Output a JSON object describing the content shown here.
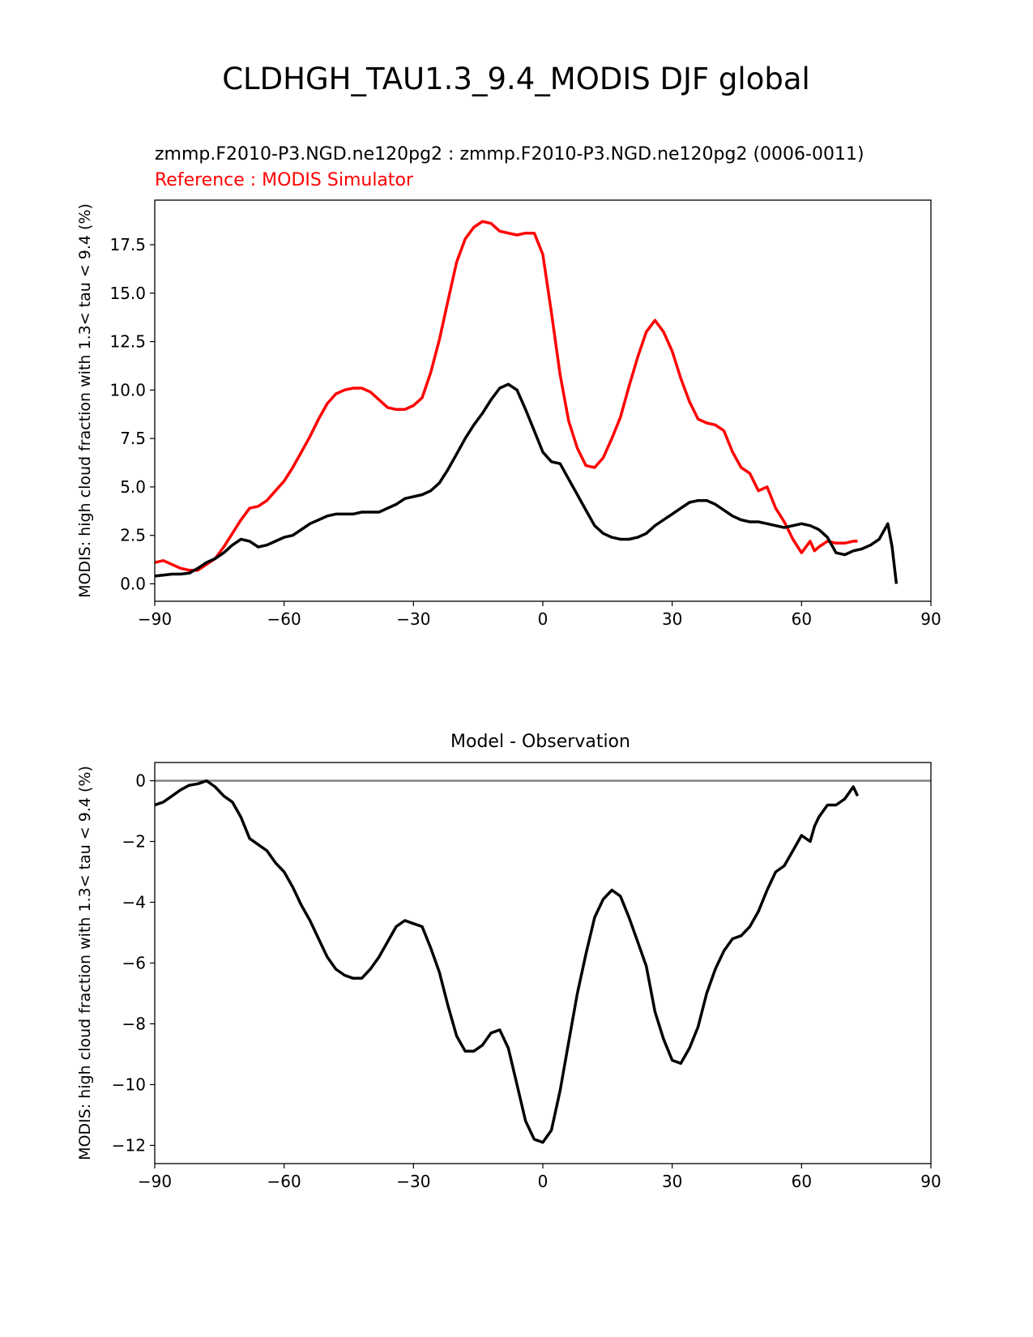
{
  "figure": {
    "suptitle": "CLDHGH_TAU1.3_9.4_MODIS DJF global"
  },
  "chart_data": [
    {
      "type": "line",
      "title_left": "zmmp.F2010-P3.NGD.ne120pg2 : zmmp.F2010-P3.NGD.ne120pg2 (0006-0011)",
      "title_left_2": "Reference : MODIS Simulator",
      "ylabel": "MODIS: high cloud fraction with 1.3< tau < 9.4 (%)",
      "xlabel": "",
      "xlim": [
        -90,
        90
      ],
      "ylim": [
        -0.9,
        19.8
      ],
      "xticks": [
        -90,
        -60,
        -30,
        0,
        30,
        60,
        90
      ],
      "xtick_labels": [
        "−90",
        "−60",
        "−30",
        "0",
        "30",
        "60",
        "90"
      ],
      "yticks": [
        0,
        2.5,
        5,
        7.5,
        10,
        12.5,
        15,
        17.5
      ],
      "ytick_labels": [
        "0.0",
        "2.5",
        "5.0",
        "7.5",
        "10.0",
        "12.5",
        "15.0",
        "17.5"
      ],
      "grid": false,
      "series": [
        {
          "color": "#ff0000",
          "x": [
            -90,
            -88,
            -86,
            -84,
            -82,
            -80,
            -78,
            -76,
            -74,
            -72,
            -70,
            -68,
            -66,
            -64,
            -62,
            -60,
            -58,
            -56,
            -54,
            -52,
            -50,
            -48,
            -46,
            -44,
            -42,
            -40,
            -38,
            -36,
            -34,
            -32,
            -30,
            -28,
            -26,
            -24,
            -22,
            -20,
            -18,
            -16,
            -14,
            -12,
            -10,
            -8,
            -6,
            -4,
            -2,
            0,
            2,
            4,
            6,
            8,
            10,
            12,
            14,
            16,
            18,
            20,
            22,
            24,
            26,
            28,
            30,
            32,
            34,
            36,
            38,
            40,
            42,
            44,
            46,
            48,
            50,
            52,
            54,
            56,
            58,
            60,
            62,
            63,
            64,
            66,
            68,
            70,
            72,
            73
          ],
          "y": [
            1.1,
            1.2,
            1.0,
            0.8,
            0.7,
            0.7,
            1.0,
            1.3,
            1.9,
            2.6,
            3.3,
            3.9,
            4.0,
            4.3,
            4.8,
            5.3,
            6.0,
            6.8,
            7.6,
            8.5,
            9.3,
            9.8,
            10.0,
            10.1,
            10.1,
            9.9,
            9.5,
            9.1,
            9.0,
            9.0,
            9.2,
            9.6,
            10.9,
            12.6,
            14.6,
            16.6,
            17.8,
            18.4,
            18.7,
            18.6,
            18.2,
            18.1,
            18.0,
            18.1,
            18.1,
            17.0,
            14.0,
            10.8,
            8.4,
            7.0,
            6.1,
            6.0,
            6.5,
            7.5,
            8.6,
            10.2,
            11.7,
            13.0,
            13.6,
            13.0,
            12.0,
            10.6,
            9.4,
            8.5,
            8.3,
            8.2,
            7.9,
            6.8,
            6.0,
            5.7,
            4.8,
            5.0,
            3.9,
            3.2,
            2.3,
            1.6,
            2.2,
            1.7,
            1.9,
            2.2,
            2.1,
            2.1,
            2.2,
            2.2
          ]
        },
        {
          "color": "#000000",
          "x": [
            -90,
            -88,
            -86,
            -84,
            -82,
            -80,
            -78,
            -76,
            -74,
            -72,
            -70,
            -68,
            -66,
            -64,
            -62,
            -60,
            -58,
            -56,
            -54,
            -52,
            -50,
            -48,
            -46,
            -44,
            -42,
            -40,
            -38,
            -36,
            -34,
            -32,
            -30,
            -28,
            -26,
            -24,
            -22,
            -20,
            -18,
            -16,
            -14,
            -12,
            -10,
            -8,
            -6,
            -4,
            -2,
            0,
            2,
            4,
            6,
            8,
            10,
            12,
            14,
            16,
            18,
            20,
            22,
            24,
            26,
            28,
            30,
            32,
            34,
            36,
            38,
            40,
            42,
            44,
            46,
            48,
            50,
            52,
            54,
            56,
            58,
            60,
            62,
            64,
            66,
            68,
            70,
            72,
            74,
            76,
            78,
            80,
            81,
            82
          ],
          "y": [
            0.4,
            0.45,
            0.5,
            0.5,
            0.55,
            0.8,
            1.1,
            1.3,
            1.6,
            2.0,
            2.3,
            2.2,
            1.9,
            2.0,
            2.2,
            2.4,
            2.5,
            2.8,
            3.1,
            3.3,
            3.5,
            3.6,
            3.6,
            3.6,
            3.7,
            3.7,
            3.7,
            3.9,
            4.1,
            4.4,
            4.5,
            4.6,
            4.8,
            5.2,
            5.9,
            6.7,
            7.5,
            8.2,
            8.8,
            9.5,
            10.1,
            10.3,
            10.0,
            9.0,
            7.9,
            6.8,
            6.3,
            6.2,
            5.4,
            4.6,
            3.8,
            3.0,
            2.6,
            2.4,
            2.3,
            2.3,
            2.4,
            2.6,
            3.0,
            3.3,
            3.6,
            3.9,
            4.2,
            4.3,
            4.3,
            4.1,
            3.8,
            3.5,
            3.3,
            3.2,
            3.2,
            3.1,
            3.0,
            2.9,
            3.0,
            3.1,
            3.0,
            2.8,
            2.4,
            1.6,
            1.5,
            1.7,
            1.8,
            2.0,
            2.3,
            3.1,
            1.9,
            0.0
          ]
        }
      ]
    },
    {
      "type": "line",
      "title": "Model - Observation",
      "ylabel": "MODIS: high cloud fraction with 1.3< tau < 9.4 (%)",
      "xlabel": "",
      "xlim": [
        -90,
        90
      ],
      "ylim": [
        -12.6,
        0.6
      ],
      "xticks": [
        -90,
        -60,
        -30,
        0,
        30,
        60,
        90
      ],
      "xtick_labels": [
        "−90",
        "−60",
        "−30",
        "0",
        "30",
        "60",
        "90"
      ],
      "yticks": [
        0,
        -2,
        -4,
        -6,
        -8,
        -10,
        -12
      ],
      "ytick_labels": [
        "0",
        "−2",
        "−4",
        "−6",
        "−8",
        "−10",
        "−12"
      ],
      "grid": false,
      "zero_line": true,
      "series": [
        {
          "color": "#000000",
          "x": [
            -90,
            -88,
            -86,
            -84,
            -82,
            -80,
            -78,
            -76,
            -74,
            -72,
            -70,
            -68,
            -66,
            -64,
            -62,
            -60,
            -58,
            -56,
            -54,
            -52,
            -50,
            -48,
            -46,
            -44,
            -42,
            -40,
            -38,
            -36,
            -34,
            -32,
            -30,
            -28,
            -26,
            -24,
            -22,
            -20,
            -18,
            -16,
            -14,
            -12,
            -10,
            -8,
            -6,
            -4,
            -2,
            0,
            2,
            4,
            6,
            8,
            10,
            12,
            14,
            16,
            18,
            20,
            22,
            24,
            26,
            28,
            30,
            32,
            34,
            36,
            38,
            40,
            42,
            44,
            46,
            48,
            50,
            52,
            54,
            56,
            58,
            60,
            62,
            63,
            64,
            66,
            68,
            70,
            72,
            73
          ],
          "y": [
            -0.8,
            -0.7,
            -0.5,
            -0.3,
            -0.15,
            -0.1,
            0.0,
            -0.2,
            -0.5,
            -0.7,
            -1.2,
            -1.9,
            -2.1,
            -2.3,
            -2.7,
            -3.0,
            -3.5,
            -4.1,
            -4.6,
            -5.2,
            -5.8,
            -6.2,
            -6.4,
            -6.5,
            -6.5,
            -6.2,
            -5.8,
            -5.3,
            -4.8,
            -4.6,
            -4.7,
            -4.8,
            -5.5,
            -6.3,
            -7.4,
            -8.4,
            -8.9,
            -8.9,
            -8.7,
            -8.3,
            -8.2,
            -8.8,
            -10.0,
            -11.2,
            -11.8,
            -11.9,
            -11.5,
            -10.2,
            -8.6,
            -7.0,
            -5.7,
            -4.5,
            -3.9,
            -3.6,
            -3.8,
            -4.5,
            -5.3,
            -6.1,
            -7.6,
            -8.5,
            -9.2,
            -9.3,
            -8.8,
            -8.1,
            -7.0,
            -6.2,
            -5.6,
            -5.2,
            -5.1,
            -4.8,
            -4.3,
            -3.6,
            -3.0,
            -2.8,
            -2.3,
            -1.8,
            -2.0,
            -1.5,
            -1.2,
            -0.8,
            -0.8,
            -0.6,
            -0.2,
            -0.5
          ]
        }
      ]
    }
  ]
}
